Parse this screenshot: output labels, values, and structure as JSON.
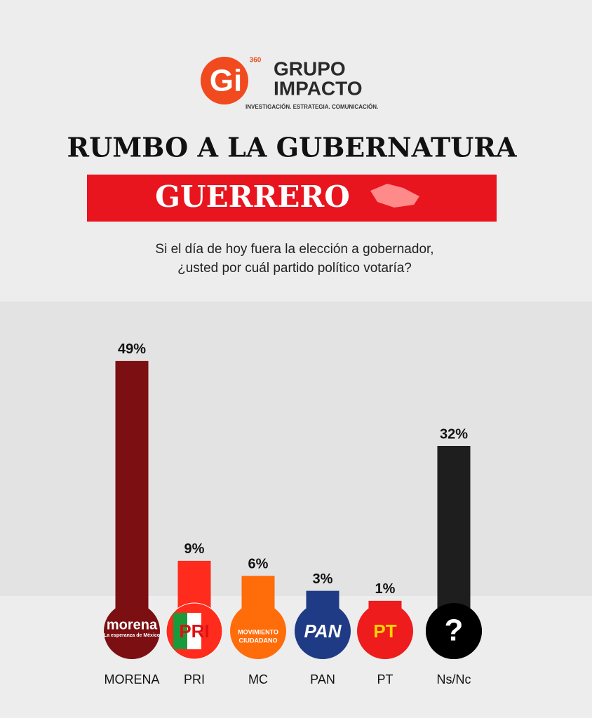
{
  "header": {
    "logo_mark": "Gi",
    "logo_badge": "360",
    "brand_line1": "GRUPO",
    "brand_line2": "IMPACTO",
    "tagline": "INVESTIGACIÓN. ESTRATEGIA. COMUNICACIÓN."
  },
  "chart_data": {
    "type": "bar",
    "title": "RUMBO A LA GUBERNATURA",
    "subtitle": "GUERRERO",
    "question": [
      "Si el día de hoy fuera la elección a gobernador,",
      "¿usted por cuál partido político votaría?"
    ],
    "categories": [
      "MORENA",
      "PRI",
      "MC",
      "PAN",
      "PT",
      "Ns/Nc"
    ],
    "values": [
      49,
      9,
      6,
      3,
      1,
      32
    ],
    "value_labels": [
      "49%",
      "9%",
      "6%",
      "3%",
      "1%",
      "32%"
    ],
    "colors": [
      "#7b0f12",
      "#ff2b1c",
      "#ff6c0a",
      "#1f3b86",
      "#ee1c1c",
      "#1e1e1e"
    ],
    "logos": [
      [
        "morena",
        "La esperanza de México"
      ],
      [
        "PRI"
      ],
      [
        "MOVIMIENTO",
        "CIUDADANO"
      ],
      [
        "PAN"
      ],
      [
        "PT"
      ],
      [
        "?"
      ]
    ]
  }
}
